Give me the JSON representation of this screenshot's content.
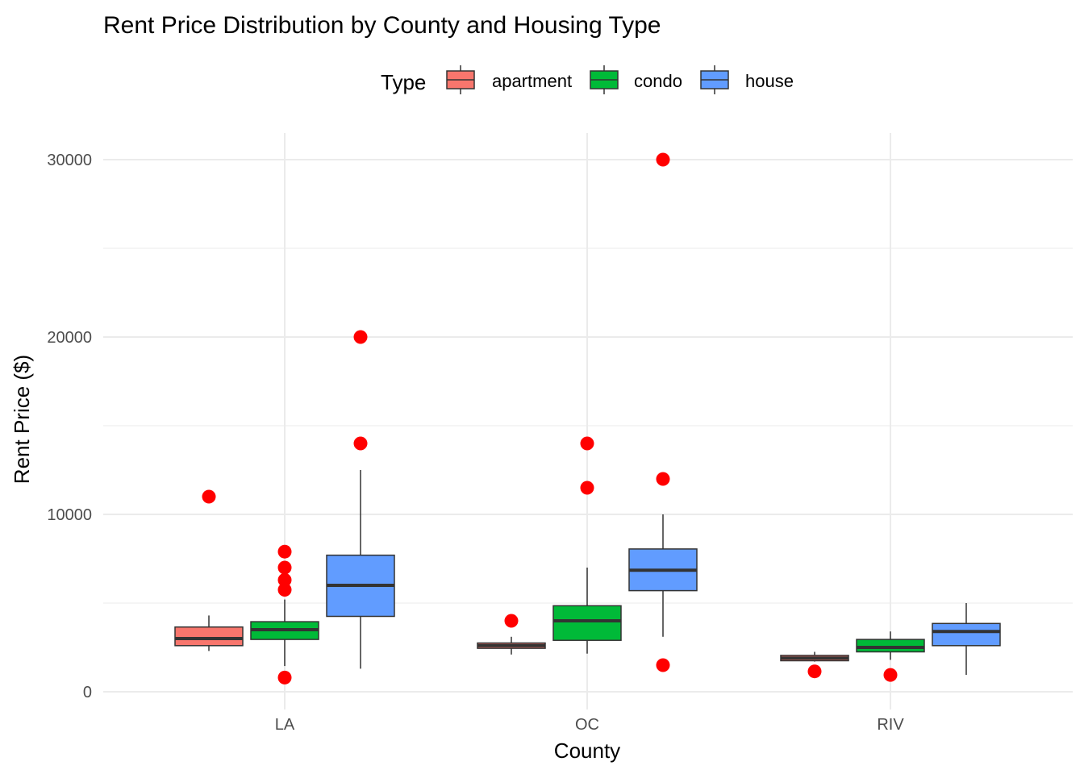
{
  "chart_data": {
    "type": "boxplot",
    "title": "Rent Price Distribution by County and Housing Type",
    "xlabel": "County",
    "ylabel": "Rent Price ($)",
    "categories": [
      "LA",
      "OC",
      "RIV"
    ],
    "ylim": [
      -1200,
      31400
    ],
    "yticks": [
      0,
      10000,
      20000,
      30000
    ],
    "grid": true,
    "legend": {
      "title": "Type",
      "position": "top"
    },
    "outlier_color": "#FF0000",
    "series": [
      {
        "name": "apartment",
        "color": "#F8766D",
        "boxes": [
          {
            "category": "LA",
            "whisker_low": 2300,
            "q1": 2600,
            "median": 3000,
            "q3": 3650,
            "whisker_high": 4300,
            "outliers": [
              11000
            ]
          },
          {
            "category": "OC",
            "whisker_low": 2100,
            "q1": 2450,
            "median": 2600,
            "q3": 2750,
            "whisker_high": 3100,
            "outliers": [
              4000
            ]
          },
          {
            "category": "RIV",
            "whisker_low": 1700,
            "q1": 1750,
            "median": 1900,
            "q3": 2050,
            "whisker_high": 2250,
            "outliers": [
              1150
            ]
          }
        ]
      },
      {
        "name": "condo",
        "color": "#00BA38",
        "boxes": [
          {
            "category": "LA",
            "whisker_low": 1450,
            "q1": 2950,
            "median": 3500,
            "q3": 3950,
            "whisker_high": 5200,
            "outliers": [
              7900,
              7000,
              6300,
              5750,
              800
            ]
          },
          {
            "category": "OC",
            "whisker_low": 2150,
            "q1": 2900,
            "median": 4000,
            "q3": 4850,
            "whisker_high": 7000,
            "outliers": [
              14000,
              11500
            ]
          },
          {
            "category": "RIV",
            "whisker_low": 1800,
            "q1": 2250,
            "median": 2500,
            "q3": 2950,
            "whisker_high": 3400,
            "outliers": [
              950
            ]
          }
        ]
      },
      {
        "name": "house",
        "color": "#619CFF",
        "boxes": [
          {
            "category": "LA",
            "whisker_low": 1300,
            "q1": 4250,
            "median": 6000,
            "q3": 7700,
            "whisker_high": 12500,
            "outliers": [
              20000,
              14000
            ]
          },
          {
            "category": "OC",
            "whisker_low": 3100,
            "q1": 5700,
            "median": 6850,
            "q3": 8050,
            "whisker_high": 10000,
            "outliers": [
              30000,
              12000,
              1500
            ]
          },
          {
            "category": "RIV",
            "whisker_low": 950,
            "q1": 2600,
            "median": 3400,
            "q3": 3850,
            "whisker_high": 5000,
            "outliers": []
          }
        ]
      }
    ]
  }
}
